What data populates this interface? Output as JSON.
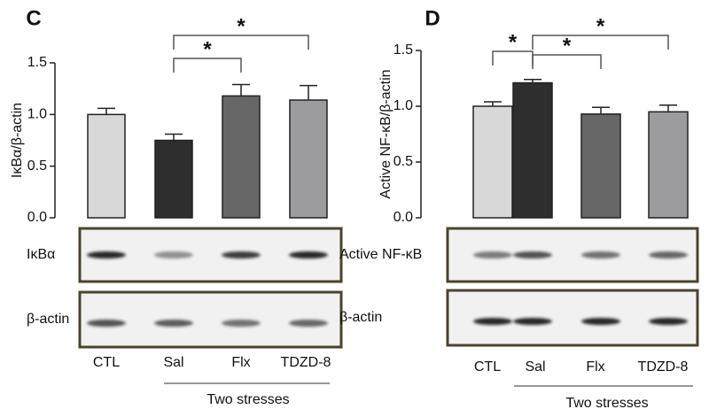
{
  "chart_data": [
    {
      "type": "bar",
      "panel": "C",
      "y_label": "IκBα/β-actin",
      "categories": [
        "CTL",
        "Sal",
        "Flx",
        "TDZD-8"
      ],
      "values": [
        1.0,
        0.75,
        1.18,
        1.14
      ],
      "errors": [
        0.06,
        0.06,
        0.11,
        0.14
      ],
      "colors": [
        "#d8d8d8",
        "#2e2e2e",
        "#676767",
        "#9c9c9e"
      ],
      "ylim": [
        0,
        1.5
      ],
      "yticks": [
        {
          "value": 0,
          "label": "0.0"
        },
        {
          "value": 0.5,
          "label": "0.5"
        },
        {
          "value": 1,
          "label": "1.0"
        },
        {
          "value": 1.5,
          "label": "1.5"
        }
      ],
      "annotations": [
        "*",
        "*"
      ],
      "blot_labels": [
        "IκBα",
        "β-actin"
      ],
      "group_label": "Two stresses"
    },
    {
      "type": "bar",
      "panel": "D",
      "y_label": "Active NF-κB/β-actin",
      "categories": [
        "CTL",
        "Sal",
        "Flx",
        "TDZD-8"
      ],
      "values": [
        1.0,
        1.21,
        0.93,
        0.95
      ],
      "errors": [
        0.04,
        0.03,
        0.06,
        0.06
      ],
      "colors": [
        "#d8d8d8",
        "#2e2e2e",
        "#676767",
        "#9c9c9e"
      ],
      "ylim": [
        0,
        1.5
      ],
      "yticks": [
        {
          "value": 0,
          "label": "0.0"
        },
        {
          "value": 0.5,
          "label": "0.5"
        },
        {
          "value": 1,
          "label": "1.0"
        },
        {
          "value": 1.5,
          "label": "1.5"
        }
      ],
      "annotations": [
        "*",
        "*",
        "*"
      ],
      "blot_labels": [
        "Active NF-κB",
        "β-actin"
      ],
      "group_label": "Two stresses"
    }
  ]
}
